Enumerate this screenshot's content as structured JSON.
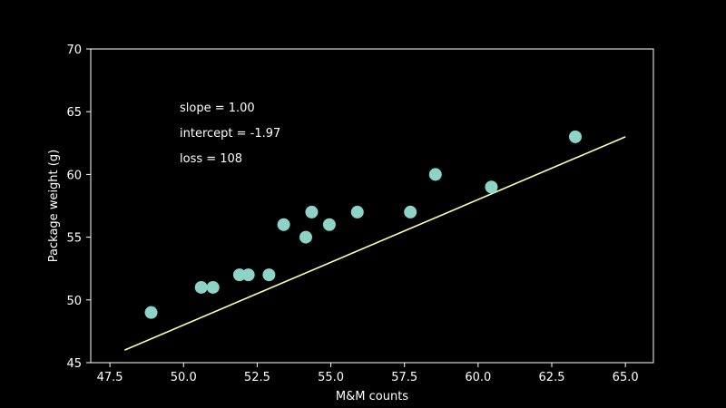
{
  "chart_data": {
    "type": "scatter",
    "title": "",
    "xlabel": "M&M counts",
    "ylabel": "Package weight (g)",
    "xlim": [
      46.85,
      65.95
    ],
    "ylim": [
      45,
      70
    ],
    "xticks": [
      "47.5",
      "50.0",
      "52.5",
      "55.0",
      "57.5",
      "60.0",
      "62.5",
      "65.0"
    ],
    "yticks": [
      "45",
      "50",
      "55",
      "60",
      "65",
      "70"
    ],
    "grid": false,
    "points": [
      {
        "x": 48.9,
        "y": 49
      },
      {
        "x": 50.6,
        "y": 51
      },
      {
        "x": 51.0,
        "y": 51
      },
      {
        "x": 51.9,
        "y": 52
      },
      {
        "x": 52.2,
        "y": 52
      },
      {
        "x": 52.9,
        "y": 52
      },
      {
        "x": 53.4,
        "y": 56
      },
      {
        "x": 54.15,
        "y": 55
      },
      {
        "x": 54.35,
        "y": 57
      },
      {
        "x": 54.95,
        "y": 56
      },
      {
        "x": 55.9,
        "y": 57
      },
      {
        "x": 57.7,
        "y": 57
      },
      {
        "x": 58.55,
        "y": 60
      },
      {
        "x": 60.45,
        "y": 59
      },
      {
        "x": 63.3,
        "y": 63
      }
    ],
    "fit_line": {
      "x": [
        48.0,
        65.0
      ],
      "y": [
        46.0,
        63.0
      ]
    },
    "annotations": [
      "slope = 1.00",
      "intercept = -1.97",
      "loss = 108"
    ],
    "colors": {
      "background": "#000000",
      "points": "#8dd3c7",
      "line": "#ffffb3",
      "axes": "#ffffff",
      "text": "#ffffff"
    }
  }
}
